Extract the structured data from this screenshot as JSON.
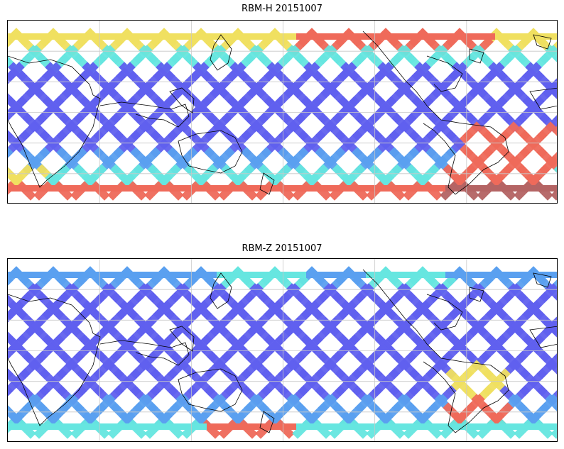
{
  "panels": [
    {
      "title": "RBM-H 20151007",
      "variant": "H"
    },
    {
      "title": "RBM-Z 20151007",
      "variant": "Z"
    }
  ],
  "colors": {
    "low": "#6060ef",
    "mid_low": "#5aa0f0",
    "mid": "#66e6e0",
    "mid_high": "#f0e060",
    "high": "#ef6a5a",
    "very_high": "#b46464",
    "gridline": "#c8c8c8",
    "coastline": "#000000",
    "frame": "#000000"
  },
  "map": {
    "projection": "cylindrical",
    "lon_range": [
      -15,
      345
    ],
    "lat_range": [
      -90,
      90
    ],
    "gridlines": true
  }
}
